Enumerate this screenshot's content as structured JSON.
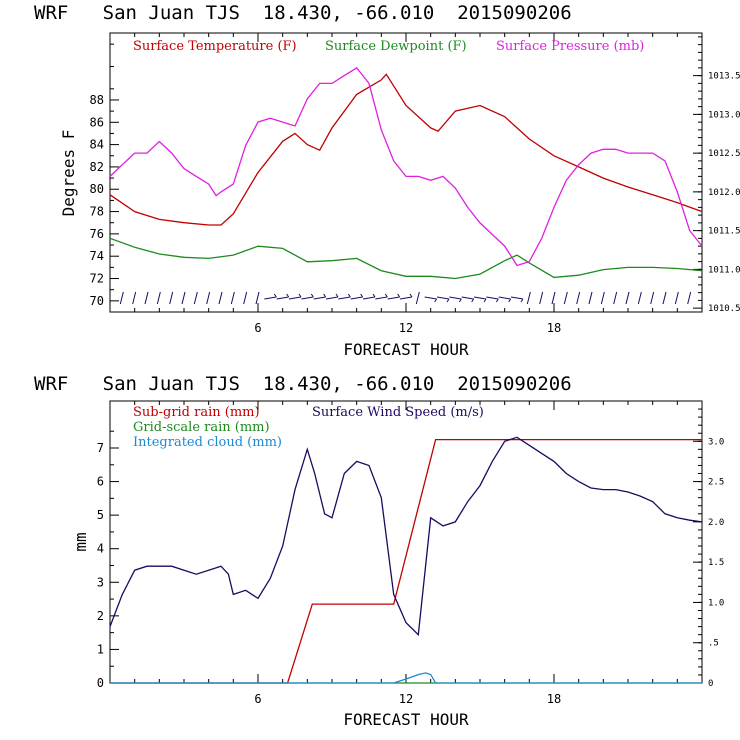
{
  "chart_data": [
    {
      "type": "line",
      "title": "WRF   San Juan TJS  18.430, -66.010  2015090206",
      "xlabel": "FORECAST HOUR",
      "ylabel": "Degrees F",
      "xlim": [
        0,
        24
      ],
      "ylim": [
        69,
        94
      ],
      "y2lim": [
        1010.45,
        1014.05
      ],
      "x_ticks": [
        6,
        12,
        18
      ],
      "y_ticks": [
        70,
        72,
        74,
        76,
        78,
        80,
        82,
        84,
        86,
        88
      ],
      "y2_ticks": [
        "1010.5",
        "1011.0",
        "1011.5",
        "1012.0",
        "1012.5",
        "1013.0",
        "1013.5"
      ],
      "grid": false,
      "legend_position": "top",
      "series": [
        {
          "name": "Surface Temperature (F)",
          "axis": "left",
          "color": "#c00000",
          "x": [
            0,
            1,
            2,
            3,
            4,
            4.5,
            5,
            6,
            7,
            7.5,
            8,
            8.5,
            9,
            10,
            11,
            11.2,
            12,
            13,
            13.3,
            14,
            15,
            16,
            17,
            18,
            19,
            20,
            21,
            22,
            23,
            24
          ],
          "y": [
            79.5,
            78,
            77.3,
            77,
            76.8,
            76.8,
            77.8,
            81.5,
            84.3,
            85,
            84,
            83.5,
            85.5,
            88.5,
            89.8,
            90.3,
            87.5,
            85.5,
            85.2,
            87,
            87.5,
            86.5,
            84.5,
            83,
            82,
            81,
            80.2,
            79.5,
            78.8,
            78
          ]
        },
        {
          "name": "Surface Dewpoint (F)",
          "axis": "left",
          "color": "#1e8a1e",
          "x": [
            0,
            1,
            2,
            3,
            4,
            5,
            6,
            7,
            8,
            9,
            10,
            11,
            12,
            13,
            14,
            15,
            16,
            16.5,
            17,
            18,
            19,
            20,
            21,
            22,
            23,
            24
          ],
          "y": [
            75.6,
            74.8,
            74.2,
            73.9,
            73.8,
            74.1,
            74.9,
            74.7,
            73.5,
            73.6,
            73.8,
            72.7,
            72.2,
            72.2,
            72,
            72.4,
            73.6,
            74.1,
            73.4,
            72.1,
            72.3,
            72.8,
            73,
            73,
            72.9,
            72.7
          ]
        },
        {
          "name": "Surface Pressure (mb)",
          "axis": "right",
          "color": "#e020e0",
          "x": [
            0,
            0.5,
            1,
            1.5,
            2,
            2.5,
            3,
            3.5,
            4,
            4.3,
            4.5,
            5,
            5.5,
            6,
            6.5,
            7,
            7.5,
            8,
            8.5,
            9,
            9.5,
            10,
            10.5,
            11,
            11.5,
            12,
            12.5,
            13,
            13.5,
            14,
            14.5,
            15,
            15.5,
            16,
            16.5,
            17,
            17.5,
            18,
            18.5,
            19,
            19.5,
            20,
            20.5,
            21,
            21.5,
            22,
            22.5,
            23,
            23.5,
            24
          ],
          "y": [
            1012.2,
            1012.35,
            1012.5,
            1012.5,
            1012.65,
            1012.5,
            1012.3,
            1012.2,
            1012.1,
            1011.95,
            1012.0,
            1012.1,
            1012.6,
            1012.9,
            1012.95,
            1012.9,
            1012.85,
            1013.2,
            1013.4,
            1013.4,
            1013.5,
            1013.6,
            1013.4,
            1012.8,
            1012.4,
            1012.2,
            1012.2,
            1012.15,
            1012.2,
            1012.05,
            1011.8,
            1011.6,
            1011.45,
            1011.3,
            1011.05,
            1011.1,
            1011.4,
            1011.8,
            1012.15,
            1012.35,
            1012.5,
            1012.55,
            1012.55,
            1012.5,
            1012.5,
            1012.5,
            1012.4,
            1012.0,
            1011.5,
            1011.3
          ]
        }
      ],
      "wind_barbs": true
    },
    {
      "type": "line",
      "title": "WRF   San Juan TJS  18.430, -66.010  2015090206",
      "xlabel": "FORECAST HOUR",
      "ylabel": "mm",
      "xlim": [
        0,
        24
      ],
      "ylim": [
        0,
        8.4
      ],
      "y2lim": [
        0,
        3.5
      ],
      "x_ticks": [
        6,
        12,
        18
      ],
      "y_ticks": [
        0,
        1,
        2,
        3,
        4,
        5,
        6,
        7
      ],
      "y2_ticks": [
        "0",
        ".5",
        "1.0",
        "1.5",
        "2.0",
        "2.5",
        "3.0"
      ],
      "grid": false,
      "legend_position": "top-left",
      "series": [
        {
          "name": "Sub-grid rain (mm)",
          "axis": "left",
          "color": "#c00000",
          "x": [
            0,
            7.2,
            8.2,
            11.5,
            13.2,
            24
          ],
          "y": [
            0,
            0,
            2.35,
            2.35,
            7.25,
            7.25
          ]
        },
        {
          "name": "Grid-scale rain (mm)",
          "axis": "left",
          "color": "#1e8a1e",
          "x": [
            0,
            24
          ],
          "y": [
            0,
            0
          ]
        },
        {
          "name": "Integrated cloud (mm)",
          "axis": "left",
          "color": "#1a8ad4",
          "x": [
            0,
            11.5,
            12,
            12.5,
            12.8,
            13,
            13.2,
            24
          ],
          "y": [
            0,
            0,
            0.12,
            0.25,
            0.3,
            0.25,
            0,
            0
          ]
        },
        {
          "name": "Surface Wind Speed (m/s)",
          "axis": "right",
          "color": "#200860",
          "x": [
            0,
            0.5,
            1,
            1.5,
            2,
            2.5,
            3,
            3.5,
            4,
            4.5,
            4.8,
            5,
            5.5,
            6,
            6.5,
            7,
            7.5,
            8,
            8.3,
            8.7,
            9,
            9.5,
            10,
            10.5,
            11,
            11.5,
            12,
            12.5,
            13,
            13.5,
            14,
            14.5,
            15,
            15.5,
            16,
            16.5,
            17,
            17.5,
            18,
            18.5,
            19,
            19.5,
            20,
            20.5,
            21,
            21.5,
            22,
            22.5,
            23,
            23.5,
            24
          ],
          "y": [
            0.7,
            1.1,
            1.4,
            1.45,
            1.45,
            1.45,
            1.4,
            1.35,
            1.4,
            1.45,
            1.35,
            1.1,
            1.15,
            1.05,
            1.3,
            1.7,
            2.4,
            2.9,
            2.6,
            2.1,
            2.05,
            2.6,
            2.75,
            2.7,
            2.3,
            1.1,
            0.75,
            0.6,
            2.05,
            1.95,
            2.0,
            2.25,
            2.45,
            2.75,
            3.0,
            3.05,
            2.95,
            2.85,
            2.75,
            2.6,
            2.5,
            2.42,
            2.4,
            2.4,
            2.37,
            2.32,
            2.25,
            2.1,
            2.05,
            2.02,
            2.0
          ]
        }
      ]
    }
  ]
}
